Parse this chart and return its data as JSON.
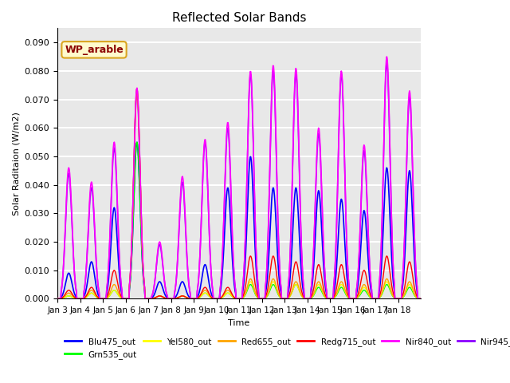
{
  "title": "Reflected Solar Bands",
  "xlabel": "Time",
  "ylabel": "Solar Raditaion (W/m2)",
  "ylim": [
    0,
    0.095
  ],
  "yticks": [
    0.0,
    0.01,
    0.02,
    0.03,
    0.04,
    0.05,
    0.06,
    0.07,
    0.08,
    0.09
  ],
  "xtick_labels": [
    "Jan 3",
    "Jan 4",
    "Jan 5",
    "Jan 6",
    "Jan 7",
    "Jan 8",
    "Jan 9",
    "Jan 10",
    "Jan 11",
    "Jan 12",
    "Jan 13",
    "Jan 14",
    "Jan 15",
    "Jan 16",
    "Jan 17",
    "Jan 18"
  ],
  "series": {
    "Blu475_out": {
      "color": "#0000FF",
      "lw": 1.2
    },
    "Grn535_out": {
      "color": "#00FF00",
      "lw": 1.0
    },
    "Yel580_out": {
      "color": "#FFFF00",
      "lw": 1.0
    },
    "Red655_out": {
      "color": "#FFA500",
      "lw": 1.0
    },
    "Redg715_out": {
      "color": "#FF0000",
      "lw": 1.0
    },
    "Nir840_out": {
      "color": "#FF00FF",
      "lw": 1.2
    },
    "Nir945_out": {
      "color": "#8B00FF",
      "lw": 1.2
    }
  },
  "annotation_text": "WP_arable",
  "bg_color": "#E8E8E8",
  "grid_color": "#FFFFFF",
  "n_points_per_day": 48,
  "nir840_peaks": [
    0.046,
    0.041,
    0.055,
    0.074,
    0.02,
    0.043,
    0.056,
    0.062,
    0.08,
    0.082,
    0.081,
    0.06,
    0.08,
    0.054,
    0.085,
    0.073
  ],
  "nir945_peaks": [
    0.044,
    0.039,
    0.053,
    0.072,
    0.019,
    0.041,
    0.055,
    0.06,
    0.079,
    0.08,
    0.079,
    0.058,
    0.079,
    0.052,
    0.083,
    0.071
  ],
  "blu475_peaks": [
    0.009,
    0.013,
    0.032,
    0.055,
    0.006,
    0.006,
    0.012,
    0.039,
    0.05,
    0.039,
    0.039,
    0.038,
    0.035,
    0.031,
    0.046,
    0.045
  ],
  "grn535_peaks": [
    0.001,
    0.002,
    0.003,
    0.055,
    0.001,
    0.001,
    0.002,
    0.002,
    0.005,
    0.005,
    0.005,
    0.004,
    0.004,
    0.003,
    0.005,
    0.004
  ],
  "yel580_peaks": [
    0.001,
    0.002,
    0.003,
    0.073,
    0.001,
    0.001,
    0.002,
    0.002,
    0.006,
    0.006,
    0.005,
    0.005,
    0.005,
    0.004,
    0.006,
    0.005
  ],
  "red655_peaks": [
    0.002,
    0.003,
    0.005,
    0.073,
    0.001,
    0.001,
    0.003,
    0.003,
    0.007,
    0.007,
    0.006,
    0.006,
    0.006,
    0.005,
    0.007,
    0.006
  ],
  "redg715_peaks": [
    0.003,
    0.004,
    0.01,
    0.074,
    0.001,
    0.001,
    0.004,
    0.004,
    0.015,
    0.015,
    0.013,
    0.012,
    0.012,
    0.01,
    0.015,
    0.013
  ]
}
